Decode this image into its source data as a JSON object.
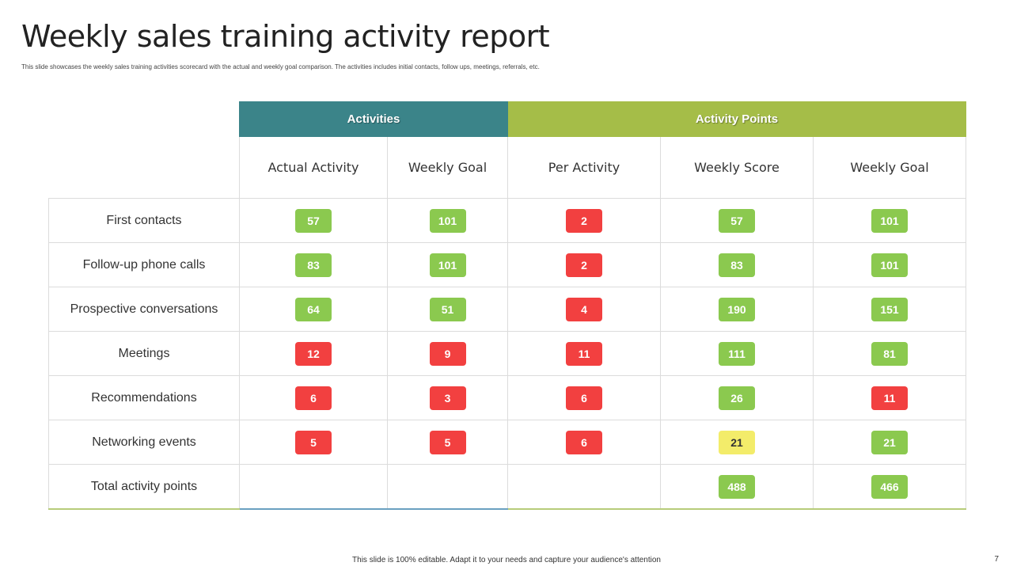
{
  "title": "Weekly sales training activity report",
  "subtitle": "This slide showcases the weekly sales training activities scorecard with the actual and weekly goal comparison. The activities includes initial contacts, follow ups, meetings, referrals, etc.",
  "groups": {
    "activities": "Activities",
    "points": "Activity Points"
  },
  "columns": [
    "Actual Activity",
    "Weekly Goal",
    "Per Activity",
    "Weekly Score",
    "Weekly Goal"
  ],
  "colors": {
    "green": "#8bc94f",
    "red": "#f24040",
    "yellow": "#f3ec6a",
    "teal": "#3b8489",
    "lime": "#a5bd48"
  },
  "rows": [
    {
      "label": "First contacts",
      "cells": [
        {
          "v": "57",
          "c": "g"
        },
        {
          "v": "101",
          "c": "g"
        },
        {
          "v": "2",
          "c": "r"
        },
        {
          "v": "57",
          "c": "g"
        },
        {
          "v": "101",
          "c": "g"
        }
      ]
    },
    {
      "label": "Follow-up phone calls",
      "cells": [
        {
          "v": "83",
          "c": "g"
        },
        {
          "v": "101",
          "c": "g"
        },
        {
          "v": "2",
          "c": "r"
        },
        {
          "v": "83",
          "c": "g"
        },
        {
          "v": "101",
          "c": "g"
        }
      ]
    },
    {
      "label": "Prospective conversations",
      "cells": [
        {
          "v": "64",
          "c": "g"
        },
        {
          "v": "51",
          "c": "g"
        },
        {
          "v": "4",
          "c": "r"
        },
        {
          "v": "190",
          "c": "g"
        },
        {
          "v": "151",
          "c": "g"
        }
      ]
    },
    {
      "label": "Meetings",
      "cells": [
        {
          "v": "12",
          "c": "r"
        },
        {
          "v": "9",
          "c": "r"
        },
        {
          "v": "11",
          "c": "r"
        },
        {
          "v": "111",
          "c": "g"
        },
        {
          "v": "81",
          "c": "g"
        }
      ]
    },
    {
      "label": "Recommendations",
      "cells": [
        {
          "v": "6",
          "c": "r"
        },
        {
          "v": "3",
          "c": "r"
        },
        {
          "v": "6",
          "c": "r"
        },
        {
          "v": "26",
          "c": "g"
        },
        {
          "v": "11",
          "c": "r"
        }
      ]
    },
    {
      "label": "Networking events",
      "cells": [
        {
          "v": "5",
          "c": "r"
        },
        {
          "v": "5",
          "c": "r"
        },
        {
          "v": "6",
          "c": "r"
        },
        {
          "v": "21",
          "c": "y"
        },
        {
          "v": "21",
          "c": "g"
        }
      ]
    },
    {
      "label": "Total activity points",
      "cells": [
        null,
        null,
        null,
        {
          "v": "488",
          "c": "g"
        },
        {
          "v": "466",
          "c": "g"
        }
      ]
    }
  ],
  "footer": "This slide is 100% editable. Adapt it to your needs and capture your audience's attention",
  "page": "7"
}
